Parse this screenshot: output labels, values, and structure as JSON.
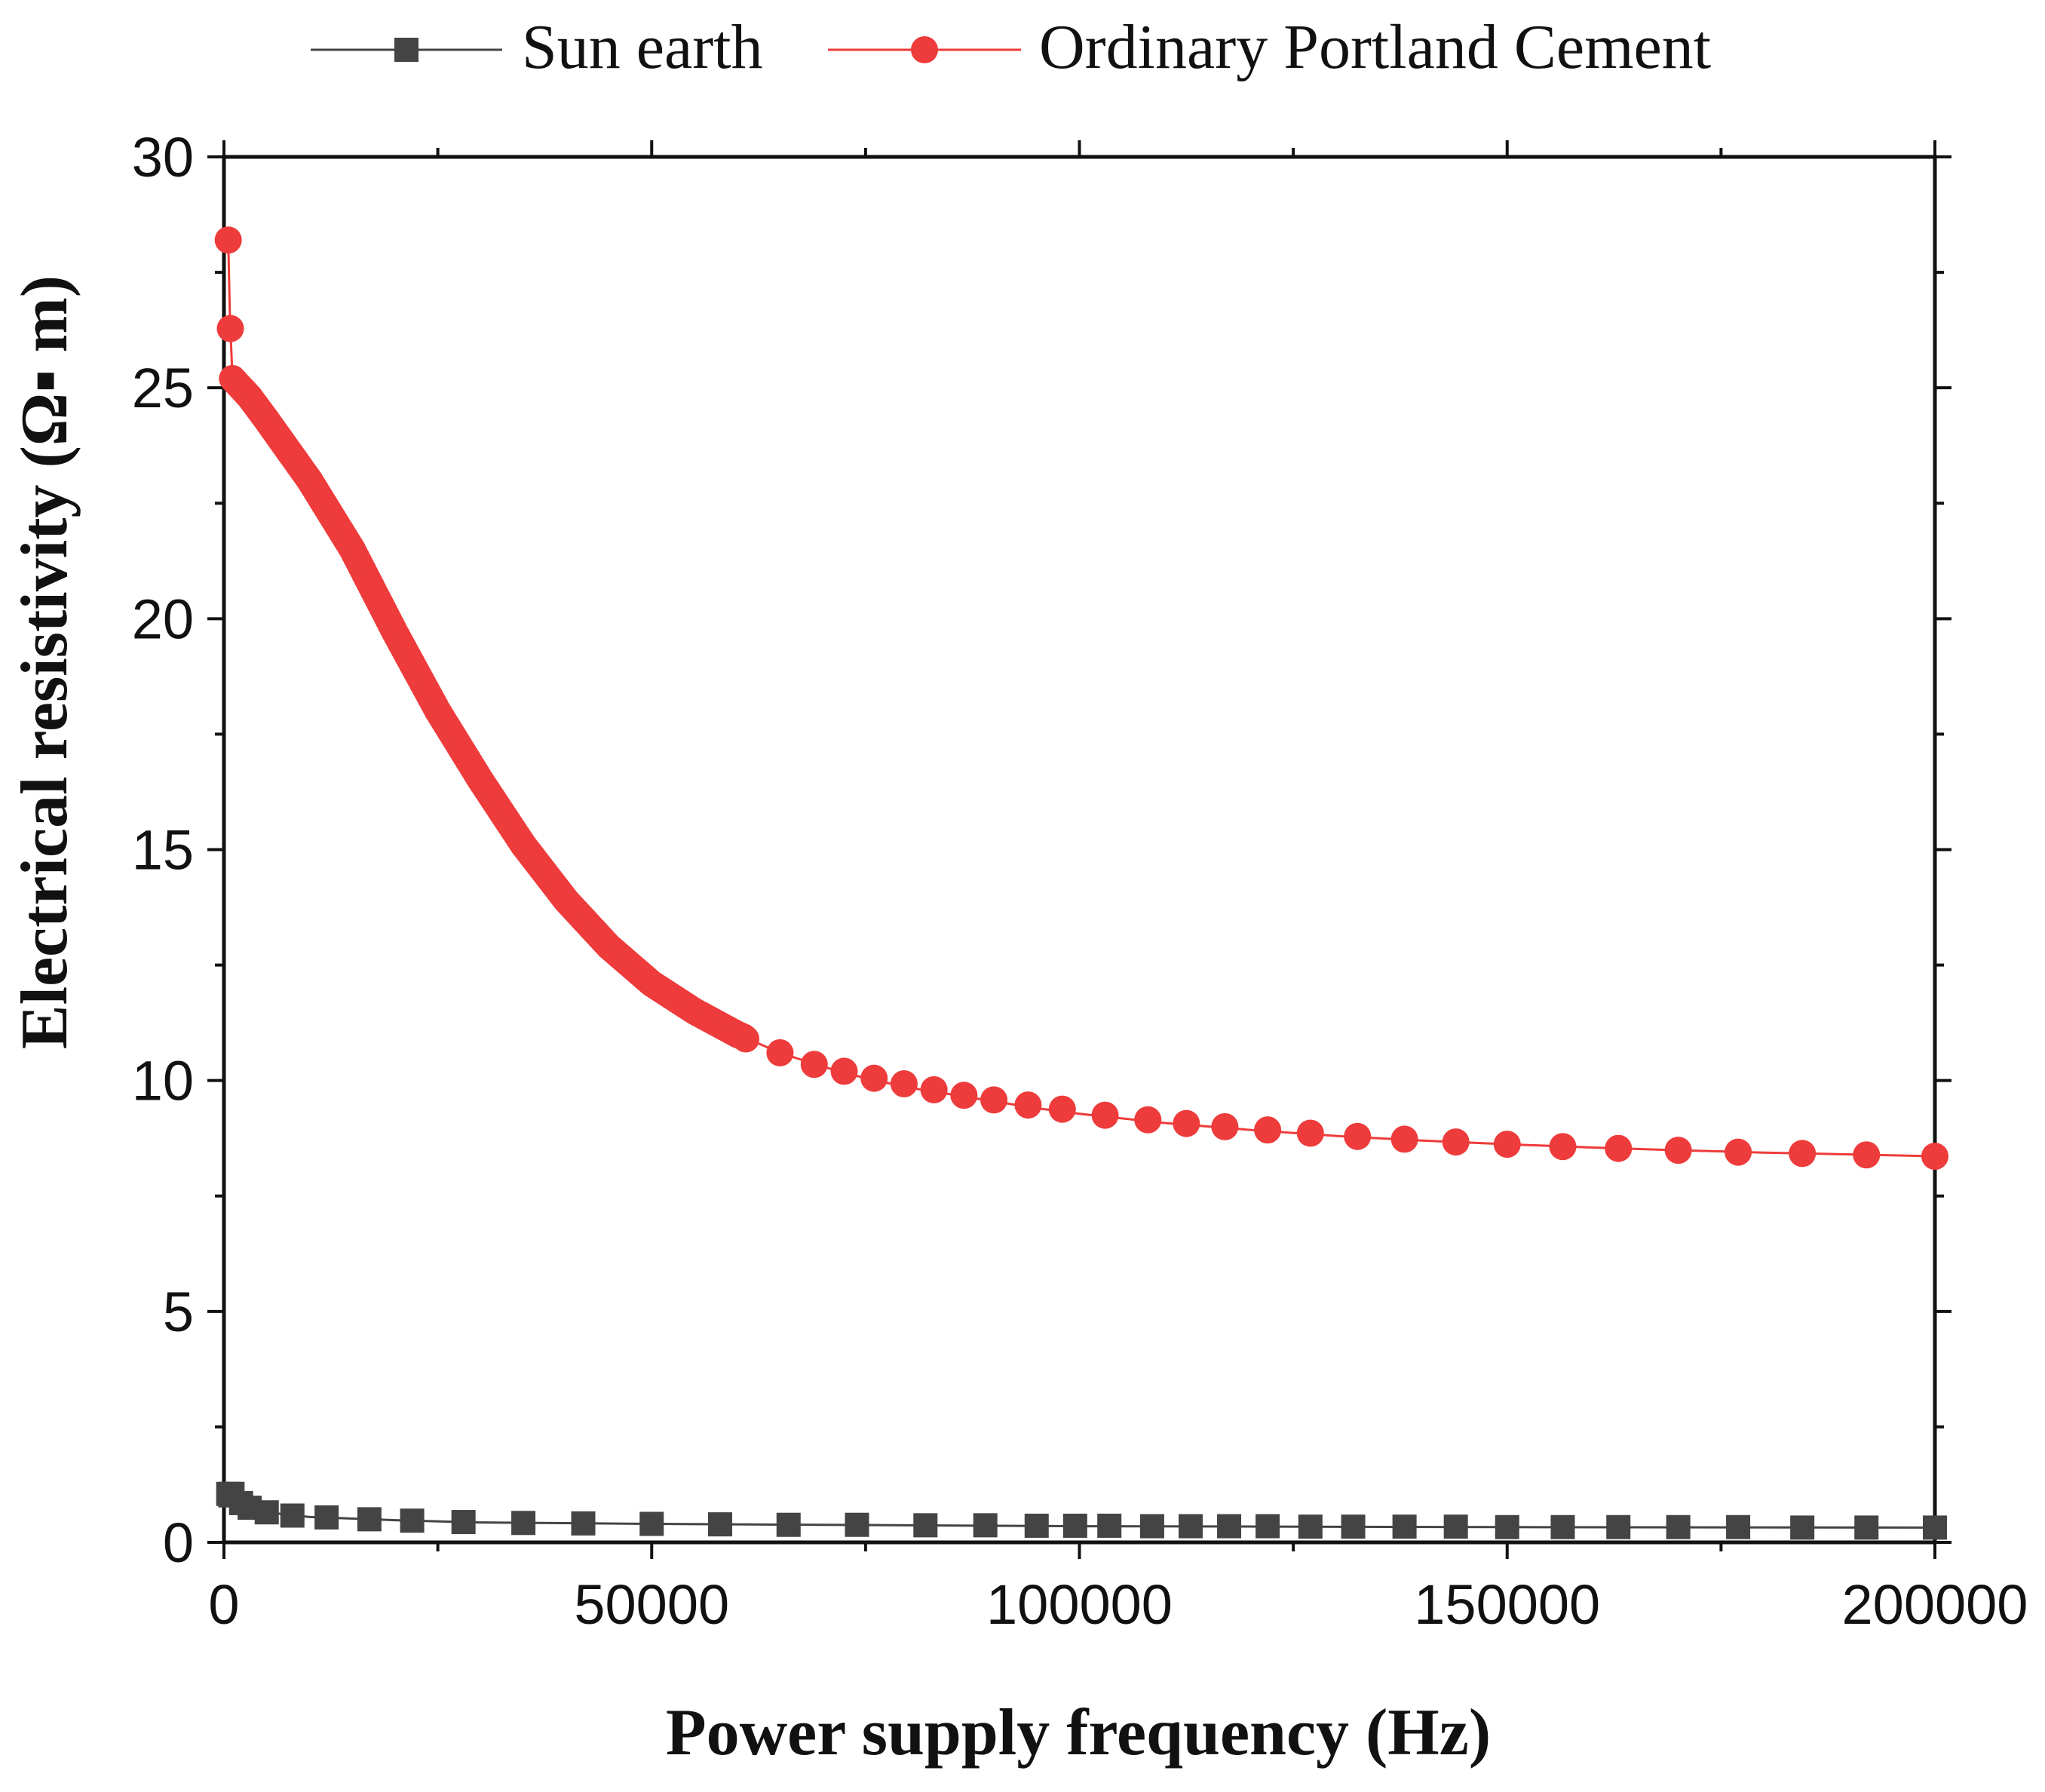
{
  "chart_data": {
    "type": "line",
    "title": "",
    "xlabel": "Power supply frequency (Hz)",
    "ylabel": "Electrical resistivity (Ω▪ m)",
    "xlim": [
      0,
      200000
    ],
    "ylim": [
      0,
      30
    ],
    "x_ticks": [
      0,
      50000,
      100000,
      150000,
      200000
    ],
    "x_tick_labels": [
      "0",
      "50000",
      "100000",
      "150000",
      "200000"
    ],
    "y_ticks": [
      0,
      5,
      10,
      15,
      20,
      25,
      30
    ],
    "y_tick_labels": [
      "0",
      "5",
      "10",
      "15",
      "20",
      "25",
      "30"
    ],
    "grid": false,
    "legend_position": "top",
    "series": [
      {
        "name": "Sun earth",
        "color": "#444444",
        "marker": "square",
        "curve": [
          [
            500,
            1.05
          ],
          [
            2000,
            0.85
          ],
          [
            5000,
            0.65
          ],
          [
            10000,
            0.55
          ],
          [
            20000,
            0.48
          ],
          [
            30000,
            0.43
          ],
          [
            50000,
            0.4
          ],
          [
            80000,
            0.37
          ],
          [
            100000,
            0.35
          ],
          [
            150000,
            0.33
          ],
          [
            200000,
            0.32
          ]
        ],
        "x": [
          1000,
          2000,
          3000,
          5000,
          8000,
          12000,
          17000,
          22000,
          28000,
          35000,
          42000,
          50000,
          58000,
          66000,
          74000,
          82000,
          89000,
          95000,
          99500,
          103500,
          108500,
          113000,
          117500,
          122000,
          127000,
          132000,
          138000,
          144000,
          150000,
          156500,
          163000,
          170000,
          177000,
          184500,
          192000,
          200000
        ],
        "values": [
          1.05,
          0.85,
          0.75,
          0.65,
          0.58,
          0.54,
          0.5,
          0.47,
          0.44,
          0.42,
          0.41,
          0.4,
          0.39,
          0.38,
          0.38,
          0.37,
          0.37,
          0.36,
          0.36,
          0.36,
          0.35,
          0.35,
          0.35,
          0.35,
          0.34,
          0.34,
          0.34,
          0.34,
          0.33,
          0.33,
          0.33,
          0.33,
          0.33,
          0.32,
          0.32,
          0.32
        ]
      },
      {
        "name": "Ordinary Portland Cement",
        "color": "#ee3b3b",
        "marker": "circle",
        "curve": [
          [
            500,
            28.2
          ],
          [
            700,
            26.5
          ],
          [
            1000,
            25.2
          ],
          [
            3000,
            24.8
          ],
          [
            5000,
            24.3
          ],
          [
            10000,
            23.0
          ],
          [
            15000,
            21.5
          ],
          [
            20000,
            19.7
          ],
          [
            25000,
            18.0
          ],
          [
            30000,
            16.5
          ],
          [
            35000,
            15.1
          ],
          [
            40000,
            13.9
          ],
          [
            45000,
            12.9
          ],
          [
            50000,
            12.1
          ],
          [
            55000,
            11.5
          ],
          [
            60000,
            11.0
          ],
          [
            65000,
            10.6
          ],
          [
            70000,
            10.3
          ],
          [
            75000,
            10.05
          ],
          [
            80000,
            9.85
          ],
          [
            85000,
            9.7
          ],
          [
            90000,
            9.55
          ],
          [
            95000,
            9.4
          ],
          [
            100000,
            9.28
          ],
          [
            110000,
            9.08
          ],
          [
            120000,
            8.93
          ],
          [
            130000,
            8.8
          ],
          [
            140000,
            8.7
          ],
          [
            150000,
            8.62
          ],
          [
            160000,
            8.55
          ],
          [
            170000,
            8.49
          ],
          [
            180000,
            8.44
          ],
          [
            190000,
            8.4
          ],
          [
            200000,
            8.36
          ]
        ],
        "x": [
          61000,
          65000,
          69000,
          72500,
          76000,
          79500,
          83000,
          86500,
          90000,
          94000,
          98000,
          103000,
          108000,
          112500,
          117000,
          122000,
          127000,
          132500,
          138000,
          144000,
          150000,
          156500,
          163000,
          170000,
          177000,
          184500,
          192000,
          200000
        ],
        "values": [
          10.9,
          10.6,
          10.35,
          10.2,
          10.05,
          9.93,
          9.8,
          9.68,
          9.58,
          9.47,
          9.38,
          9.25,
          9.15,
          9.07,
          9.0,
          8.93,
          8.86,
          8.79,
          8.73,
          8.67,
          8.62,
          8.57,
          8.53,
          8.49,
          8.45,
          8.42,
          8.39,
          8.36
        ]
      }
    ]
  }
}
